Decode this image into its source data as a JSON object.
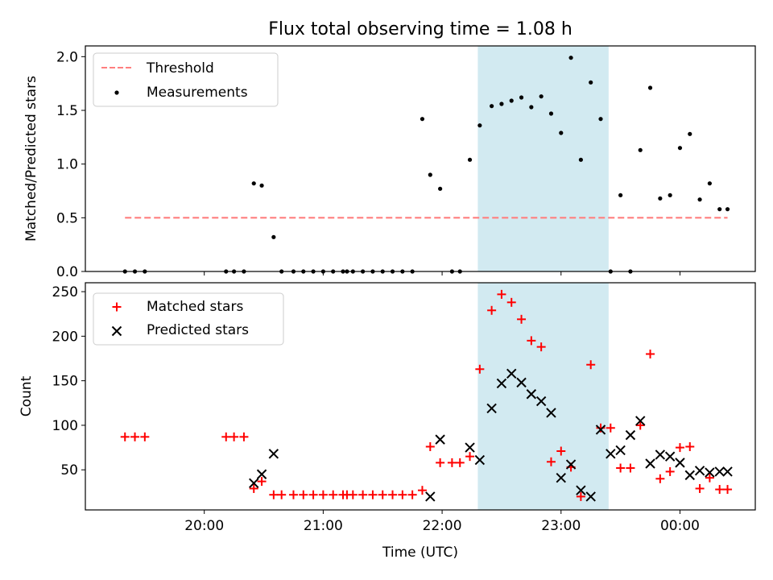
{
  "chart_data": [
    {
      "type": "scatter",
      "title": "Flux total observing time = 1.08 h",
      "xlabel": "",
      "ylabel": "Matched/Predicted stars",
      "ylim": [
        0,
        2.1
      ],
      "yticks": [
        "0.0",
        "0.5",
        "1.0",
        "1.5",
        "2.0"
      ],
      "xlim": [
        "19:00",
        "00:38"
      ],
      "shaded_region": {
        "x": [
          "22:18",
          "23:24"
        ],
        "color": "#add8e6"
      },
      "legend": {
        "placement": "top-left",
        "entries": [
          "Threshold",
          "Measurements"
        ]
      },
      "series": [
        {
          "name": "Threshold",
          "style": "dashed-line",
          "color": "#ff7f7f",
          "x": [
            "19:20",
            "00:24"
          ],
          "y": [
            0.5,
            0.5
          ]
        },
        {
          "name": "Measurements",
          "style": "dot",
          "color": "#000000",
          "x": [
            "19:20",
            "19:25",
            "19:30",
            "20:11",
            "20:15",
            "20:20",
            "20:25",
            "20:29",
            "20:35",
            "20:39",
            "20:45",
            "20:50",
            "20:55",
            "21:00",
            "21:05",
            "21:10",
            "21:12",
            "21:15",
            "21:20",
            "21:25",
            "21:30",
            "21:35",
            "21:40",
            "21:45",
            "21:50",
            "21:54",
            "21:59",
            "22:05",
            "22:09",
            "22:14",
            "22:19",
            "22:25",
            "22:30",
            "22:35",
            "22:40",
            "22:45",
            "22:50",
            "22:55",
            "23:00",
            "23:05",
            "23:10",
            "23:15",
            "23:20",
            "23:25",
            "23:30",
            "23:35",
            "23:40",
            "23:45",
            "23:50",
            "23:55",
            "00:00",
            "00:05",
            "00:10",
            "00:15",
            "00:20",
            "00:24"
          ],
          "y": [
            0,
            0,
            0,
            0,
            0,
            0,
            0.82,
            0.8,
            0.32,
            0,
            0,
            0,
            0,
            0,
            0,
            0,
            0,
            0,
            0,
            0,
            0,
            0,
            0,
            0,
            1.42,
            0.9,
            0.77,
            0,
            0,
            1.04,
            1.36,
            1.54,
            1.56,
            1.59,
            1.62,
            1.53,
            1.63,
            1.47,
            1.29,
            1.99,
            1.04,
            1.76,
            1.42,
            0,
            0.71,
            0,
            1.13,
            1.71,
            0.68,
            0.71,
            1.15,
            1.28,
            0.67,
            0.82,
            0.58,
            0.58
          ]
        }
      ]
    },
    {
      "type": "scatter",
      "title": "",
      "xlabel": "Time (UTC)",
      "ylabel": "Count",
      "ylim": [
        5,
        260
      ],
      "yticks": [
        "50",
        "100",
        "150",
        "200",
        "250"
      ],
      "xticks": [
        "20:00",
        "21:00",
        "22:00",
        "23:00",
        "00:00"
      ],
      "xlim": [
        "19:00",
        "00:38"
      ],
      "shaded_region": {
        "x": [
          "22:18",
          "23:24"
        ],
        "color": "#add8e6"
      },
      "legend": {
        "placement": "top-left",
        "entries": [
          "Matched stars",
          "Predicted stars"
        ]
      },
      "series": [
        {
          "name": "Matched stars",
          "marker": "+",
          "color": "#ff0000",
          "x": [
            "19:20",
            "19:25",
            "19:30",
            "20:11",
            "20:15",
            "20:20",
            "20:25",
            "20:29",
            "20:35",
            "20:39",
            "20:45",
            "20:50",
            "20:55",
            "21:00",
            "21:05",
            "21:10",
            "21:12",
            "21:15",
            "21:20",
            "21:25",
            "21:30",
            "21:35",
            "21:40",
            "21:45",
            "21:50",
            "21:54",
            "21:59",
            "22:05",
            "22:09",
            "22:14",
            "22:19",
            "22:25",
            "22:30",
            "22:35",
            "22:40",
            "22:45",
            "22:50",
            "22:55",
            "23:00",
            "23:05",
            "23:10",
            "23:15",
            "23:20",
            "23:25",
            "23:30",
            "23:35",
            "23:40",
            "23:45",
            "23:50",
            "23:55",
            "00:00",
            "00:05",
            "00:10",
            "00:15",
            "00:20",
            "00:24"
          ],
          "y": [
            87,
            87,
            87,
            87,
            87,
            87,
            29,
            37,
            22,
            22,
            22,
            22,
            22,
            22,
            22,
            22,
            22,
            22,
            22,
            22,
            22,
            22,
            22,
            22,
            27,
            76,
            58,
            58,
            58,
            65,
            163,
            229,
            247,
            238,
            219,
            195,
            188,
            59,
            71,
            53,
            20,
            168,
            97,
            97,
            52,
            52,
            100,
            180,
            40,
            48,
            75,
            76,
            29,
            41,
            28,
            28
          ]
        },
        {
          "name": "Predicted stars",
          "marker": "x",
          "color": "#000000",
          "x": [
            "20:25",
            "20:29",
            "20:35",
            "21:54",
            "21:59",
            "22:14",
            "22:19",
            "22:25",
            "22:30",
            "22:35",
            "22:40",
            "22:45",
            "22:50",
            "22:55",
            "23:00",
            "23:05",
            "23:10",
            "23:15",
            "23:20",
            "23:25",
            "23:30",
            "23:35",
            "23:40",
            "23:45",
            "23:50",
            "23:55",
            "00:00",
            "00:05",
            "00:10",
            "00:15",
            "00:20",
            "00:24"
          ],
          "y": [
            35,
            45,
            68,
            20,
            84,
            75,
            61,
            119,
            147,
            158,
            148,
            135,
            127,
            114,
            41,
            56,
            27,
            20,
            95,
            68,
            72,
            89,
            105,
            57,
            67,
            65,
            58,
            44,
            49,
            47,
            48,
            48
          ]
        }
      ]
    }
  ]
}
